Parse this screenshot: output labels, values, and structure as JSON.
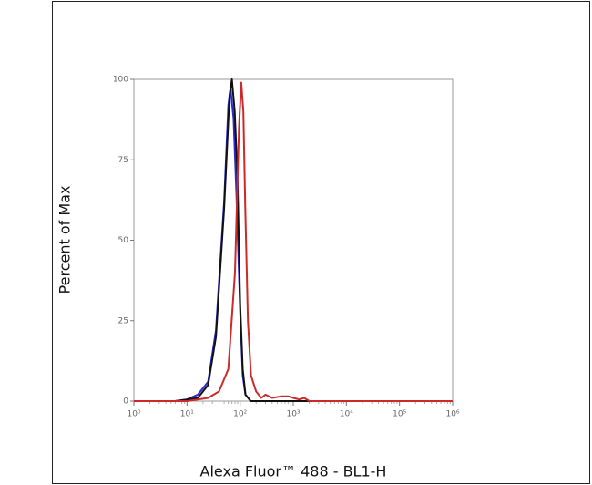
{
  "chart_data": {
    "type": "line",
    "xlabel": "Alexa Fluor™ 488 - BL1-H",
    "ylabel": "Percent of Max",
    "xscale": "log",
    "xlim": [
      1,
      1000000
    ],
    "xticks": [
      {
        "value": 1,
        "label": "10⁰"
      },
      {
        "value": 10,
        "label": "10¹"
      },
      {
        "value": 100,
        "label": "10²"
      },
      {
        "value": 1000,
        "label": "10³"
      },
      {
        "value": 10000,
        "label": "10⁴"
      },
      {
        "value": 100000,
        "label": "10⁵"
      },
      {
        "value": 1000000,
        "label": "10⁶"
      }
    ],
    "ylim": [
      0,
      100
    ],
    "yticks": [
      0,
      25,
      50,
      75,
      100
    ],
    "series": [
      {
        "color": "#2a2ad0",
        "x": [
          1,
          6,
          10,
          16,
          25,
          35,
          50,
          60,
          66,
          75,
          85,
          100,
          112,
          126,
          158,
          1000000
        ],
        "values": [
          0,
          0,
          0.5,
          2,
          6,
          22,
          62,
          92,
          97,
          88,
          65,
          28,
          8,
          2,
          0,
          0
        ]
      },
      {
        "color": "#111111",
        "x": [
          1,
          6,
          10,
          16,
          25,
          35,
          50,
          63,
          70,
          79,
          89,
          100,
          112,
          126,
          158,
          1000000
        ],
        "values": [
          0,
          0,
          0.5,
          1,
          5,
          20,
          60,
          95,
          100,
          90,
          70,
          30,
          10,
          2,
          0,
          0
        ]
      },
      {
        "color": "#cc2a2a",
        "x": [
          1,
          10,
          16,
          25,
          40,
          60,
          80,
          95,
          105,
          115,
          125,
          140,
          160,
          200,
          250,
          300,
          400,
          600,
          800,
          1000,
          1300,
          1600,
          2000,
          1000000
        ],
        "values": [
          0,
          0,
          0.5,
          1,
          3,
          10,
          40,
          85,
          99,
          90,
          60,
          25,
          8,
          3,
          1,
          2,
          1,
          1.5,
          1.5,
          1,
          0.5,
          1,
          0,
          0
        ]
      }
    ]
  }
}
